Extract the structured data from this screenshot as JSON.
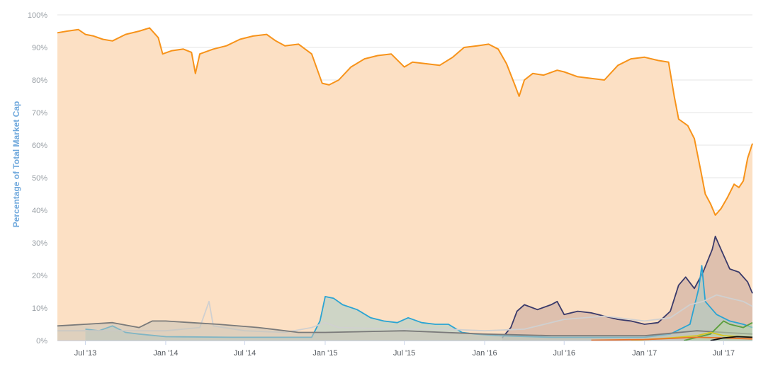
{
  "chart_data": {
    "type": "area",
    "title": "",
    "xlabel": "",
    "ylabel": "Percentage of Total Market Cap",
    "y_unit": "%",
    "ylim": [
      0,
      100
    ],
    "yticks": [
      "0%",
      "10%",
      "20%",
      "30%",
      "40%",
      "50%",
      "60%",
      "70%",
      "80%",
      "90%",
      "100%"
    ],
    "xlim": [
      "2013-04-28",
      "2017-09-05"
    ],
    "xticks": [
      {
        "date": "2013-07-01",
        "label": "Jul '13"
      },
      {
        "date": "2014-01-01",
        "label": "Jan '14"
      },
      {
        "date": "2014-07-01",
        "label": "Jul '14"
      },
      {
        "date": "2015-01-01",
        "label": "Jan '15"
      },
      {
        "date": "2015-07-01",
        "label": "Jul '15"
      },
      {
        "date": "2016-01-01",
        "label": "Jan '16"
      },
      {
        "date": "2016-07-01",
        "label": "Jul '16"
      },
      {
        "date": "2017-01-01",
        "label": "Jan '17"
      },
      {
        "date": "2017-07-01",
        "label": "Jul '17"
      }
    ],
    "grid": true,
    "legend": "none",
    "series": [
      {
        "color": "#f7931a",
        "fill": "#fce0c4",
        "points": [
          [
            "2013-04-28",
            94.5
          ],
          [
            "2013-05-20",
            95.0
          ],
          [
            "2013-06-15",
            95.5
          ],
          [
            "2013-07-01",
            94.0
          ],
          [
            "2013-07-20",
            93.5
          ],
          [
            "2013-08-10",
            92.5
          ],
          [
            "2013-09-01",
            92.0
          ],
          [
            "2013-10-01",
            94.0
          ],
          [
            "2013-11-01",
            95.0
          ],
          [
            "2013-11-25",
            96.0
          ],
          [
            "2013-12-15",
            93.0
          ],
          [
            "2013-12-25",
            88.0
          ],
          [
            "2014-01-15",
            89.0
          ],
          [
            "2014-02-10",
            89.5
          ],
          [
            "2014-03-01",
            88.5
          ],
          [
            "2014-03-10",
            82.0
          ],
          [
            "2014-03-20",
            88.0
          ],
          [
            "2014-04-20",
            89.5
          ],
          [
            "2014-05-20",
            90.5
          ],
          [
            "2014-06-20",
            92.5
          ],
          [
            "2014-07-20",
            93.5
          ],
          [
            "2014-08-20",
            94.0
          ],
          [
            "2014-09-10",
            92.0
          ],
          [
            "2014-10-01",
            90.5
          ],
          [
            "2014-11-01",
            91.0
          ],
          [
            "2014-12-01",
            88.0
          ],
          [
            "2014-12-25",
            79.0
          ],
          [
            "2015-01-10",
            78.5
          ],
          [
            "2015-02-01",
            80.0
          ],
          [
            "2015-03-01",
            84.0
          ],
          [
            "2015-04-01",
            86.5
          ],
          [
            "2015-05-01",
            87.5
          ],
          [
            "2015-06-01",
            88.0
          ],
          [
            "2015-07-01",
            84.0
          ],
          [
            "2015-07-20",
            85.5
          ],
          [
            "2015-08-20",
            85.0
          ],
          [
            "2015-09-20",
            84.5
          ],
          [
            "2015-10-20",
            87.0
          ],
          [
            "2015-11-15",
            90.0
          ],
          [
            "2015-12-15",
            90.5
          ],
          [
            "2016-01-10",
            91.0
          ],
          [
            "2016-02-01",
            89.5
          ],
          [
            "2016-02-20",
            85.0
          ],
          [
            "2016-03-10",
            78.5
          ],
          [
            "2016-03-20",
            75.0
          ],
          [
            "2016-04-01",
            80.0
          ],
          [
            "2016-04-20",
            82.0
          ],
          [
            "2016-05-15",
            81.5
          ],
          [
            "2016-06-15",
            83.0
          ],
          [
            "2016-07-01",
            82.5
          ],
          [
            "2016-08-01",
            81.0
          ],
          [
            "2016-09-01",
            80.5
          ],
          [
            "2016-10-01",
            80.0
          ],
          [
            "2016-11-01",
            84.5
          ],
          [
            "2016-12-01",
            86.5
          ],
          [
            "2017-01-01",
            87.0
          ],
          [
            "2017-02-01",
            86.0
          ],
          [
            "2017-02-25",
            85.5
          ],
          [
            "2017-03-10",
            75.0
          ],
          [
            "2017-03-20",
            68.0
          ],
          [
            "2017-04-10",
            66.0
          ],
          [
            "2017-04-25",
            62.0
          ],
          [
            "2017-05-10",
            52.0
          ],
          [
            "2017-05-20",
            45.0
          ],
          [
            "2017-06-01",
            42.0
          ],
          [
            "2017-06-12",
            38.5
          ],
          [
            "2017-06-25",
            40.5
          ],
          [
            "2017-07-10",
            44.0
          ],
          [
            "2017-07-25",
            48.0
          ],
          [
            "2017-08-05",
            47.0
          ],
          [
            "2017-08-15",
            49.0
          ],
          [
            "2017-08-25",
            56.0
          ],
          [
            "2017-09-05",
            60.5
          ]
        ]
      },
      {
        "color": "#3a3a6a",
        "fill": "#c4a69c",
        "points": [
          [
            "2016-02-10",
            0.8
          ],
          [
            "2016-03-01",
            4.0
          ],
          [
            "2016-03-15",
            9.0
          ],
          [
            "2016-04-01",
            11.0
          ],
          [
            "2016-05-01",
            9.5
          ],
          [
            "2016-06-01",
            11.0
          ],
          [
            "2016-06-15",
            12.0
          ],
          [
            "2016-07-01",
            8.0
          ],
          [
            "2016-08-01",
            9.0
          ],
          [
            "2016-09-01",
            8.5
          ],
          [
            "2016-10-01",
            7.5
          ],
          [
            "2016-11-01",
            6.5
          ],
          [
            "2016-12-01",
            6.0
          ],
          [
            "2017-01-01",
            5.0
          ],
          [
            "2017-02-01",
            5.5
          ],
          [
            "2017-03-01",
            9.0
          ],
          [
            "2017-03-20",
            17.0
          ],
          [
            "2017-04-05",
            19.5
          ],
          [
            "2017-04-25",
            16.0
          ],
          [
            "2017-05-15",
            21.0
          ],
          [
            "2017-06-05",
            28.0
          ],
          [
            "2017-06-12",
            32.0
          ],
          [
            "2017-06-25",
            28.0
          ],
          [
            "2017-07-15",
            22.0
          ],
          [
            "2017-08-05",
            21.0
          ],
          [
            "2017-08-25",
            18.0
          ],
          [
            "2017-09-05",
            14.5
          ]
        ]
      },
      {
        "color": "#2aa4d3",
        "fill": "#a8ccc8",
        "points": [
          [
            "2013-07-01",
            3.5
          ],
          [
            "2013-08-01",
            3.0
          ],
          [
            "2013-09-01",
            4.5
          ],
          [
            "2013-10-01",
            2.5
          ],
          [
            "2013-11-01",
            2.0
          ],
          [
            "2014-01-01",
            1.2
          ],
          [
            "2014-06-01",
            1.0
          ],
          [
            "2014-12-01",
            1.0
          ],
          [
            "2014-12-20",
            6.0
          ],
          [
            "2015-01-01",
            13.5
          ],
          [
            "2015-01-20",
            13.0
          ],
          [
            "2015-02-10",
            11.0
          ],
          [
            "2015-03-15",
            9.5
          ],
          [
            "2015-04-15",
            7.0
          ],
          [
            "2015-05-15",
            6.0
          ],
          [
            "2015-06-15",
            5.5
          ],
          [
            "2015-07-10",
            7.0
          ],
          [
            "2015-08-10",
            5.5
          ],
          [
            "2015-09-10",
            5.0
          ],
          [
            "2015-10-10",
            5.0
          ],
          [
            "2015-11-10",
            2.5
          ],
          [
            "2015-12-10",
            2.0
          ],
          [
            "2016-02-01",
            1.5
          ],
          [
            "2016-06-01",
            1.0
          ],
          [
            "2017-01-01",
            1.0
          ],
          [
            "2017-03-01",
            2.0
          ],
          [
            "2017-04-15",
            5.0
          ],
          [
            "2017-05-05",
            16.0
          ],
          [
            "2017-05-12",
            23.0
          ],
          [
            "2017-05-20",
            12.0
          ],
          [
            "2017-06-15",
            8.0
          ],
          [
            "2017-07-15",
            6.0
          ],
          [
            "2017-08-15",
            5.0
          ],
          [
            "2017-09-05",
            4.0
          ]
        ]
      },
      {
        "color": "#d0d0d0",
        "fill": "none",
        "points": [
          [
            "2013-04-28",
            3.0
          ],
          [
            "2013-10-01",
            3.0
          ],
          [
            "2014-01-01",
            3.0
          ],
          [
            "2014-03-20",
            4.0
          ],
          [
            "2014-04-10",
            12.0
          ],
          [
            "2014-04-20",
            4.5
          ],
          [
            "2014-07-01",
            3.0
          ],
          [
            "2014-10-01",
            2.5
          ],
          [
            "2014-12-01",
            4.0
          ],
          [
            "2015-01-01",
            5.5
          ],
          [
            "2015-02-01",
            4.0
          ],
          [
            "2015-07-01",
            3.5
          ],
          [
            "2015-10-01",
            3.5
          ],
          [
            "2016-01-01",
            3.0
          ],
          [
            "2016-04-01",
            3.5
          ],
          [
            "2016-07-01",
            6.5
          ],
          [
            "2016-10-01",
            7.5
          ],
          [
            "2017-01-01",
            6.0
          ],
          [
            "2017-03-01",
            7.0
          ],
          [
            "2017-04-15",
            11.0
          ],
          [
            "2017-05-15",
            12.0
          ],
          [
            "2017-06-15",
            14.0
          ],
          [
            "2017-07-15",
            13.0
          ],
          [
            "2017-08-15",
            12.0
          ],
          [
            "2017-09-05",
            10.5
          ]
        ]
      },
      {
        "color": "#7a7a7a",
        "fill": "#c6c2b8",
        "points": [
          [
            "2013-04-28",
            4.5
          ],
          [
            "2013-07-01",
            5.0
          ],
          [
            "2013-09-01",
            5.5
          ],
          [
            "2013-11-01",
            4.0
          ],
          [
            "2013-12-01",
            6.0
          ],
          [
            "2014-01-01",
            6.0
          ],
          [
            "2014-03-01",
            5.5
          ],
          [
            "2014-05-01",
            5.0
          ],
          [
            "2014-08-01",
            4.0
          ],
          [
            "2014-11-01",
            2.5
          ],
          [
            "2015-01-01",
            2.5
          ],
          [
            "2015-07-01",
            3.0
          ],
          [
            "2016-01-01",
            2.0
          ],
          [
            "2016-06-01",
            1.5
          ],
          [
            "2017-01-01",
            1.5
          ],
          [
            "2017-05-01",
            3.0
          ],
          [
            "2017-07-01",
            2.5
          ],
          [
            "2017-09-05",
            2.0
          ]
        ]
      },
      {
        "color": "#5a9e3c",
        "fill": "#b9d4a8",
        "points": [
          [
            "2017-04-01",
            0.0
          ],
          [
            "2017-06-01",
            2.0
          ],
          [
            "2017-07-01",
            6.0
          ],
          [
            "2017-07-15",
            5.0
          ],
          [
            "2017-08-15",
            4.0
          ],
          [
            "2017-09-05",
            5.5
          ]
        ]
      },
      {
        "color": "#d4c520",
        "fill": "none",
        "points": [
          [
            "2016-12-01",
            0.0
          ],
          [
            "2017-03-01",
            0.8
          ],
          [
            "2017-05-01",
            1.5
          ],
          [
            "2017-06-01",
            2.5
          ],
          [
            "2017-07-01",
            1.5
          ],
          [
            "2017-09-05",
            1.0
          ]
        ]
      },
      {
        "color": "#e8732a",
        "fill": "none",
        "points": [
          [
            "2016-09-01",
            0.1
          ],
          [
            "2017-01-01",
            0.3
          ],
          [
            "2017-05-01",
            1.0
          ],
          [
            "2017-07-01",
            0.8
          ],
          [
            "2017-09-05",
            0.5
          ]
        ]
      },
      {
        "color": "#111111",
        "fill": "none",
        "points": [
          [
            "2017-06-01",
            0.0
          ],
          [
            "2017-07-01",
            0.8
          ],
          [
            "2017-08-01",
            1.2
          ],
          [
            "2017-09-05",
            1.0
          ]
        ]
      }
    ]
  }
}
